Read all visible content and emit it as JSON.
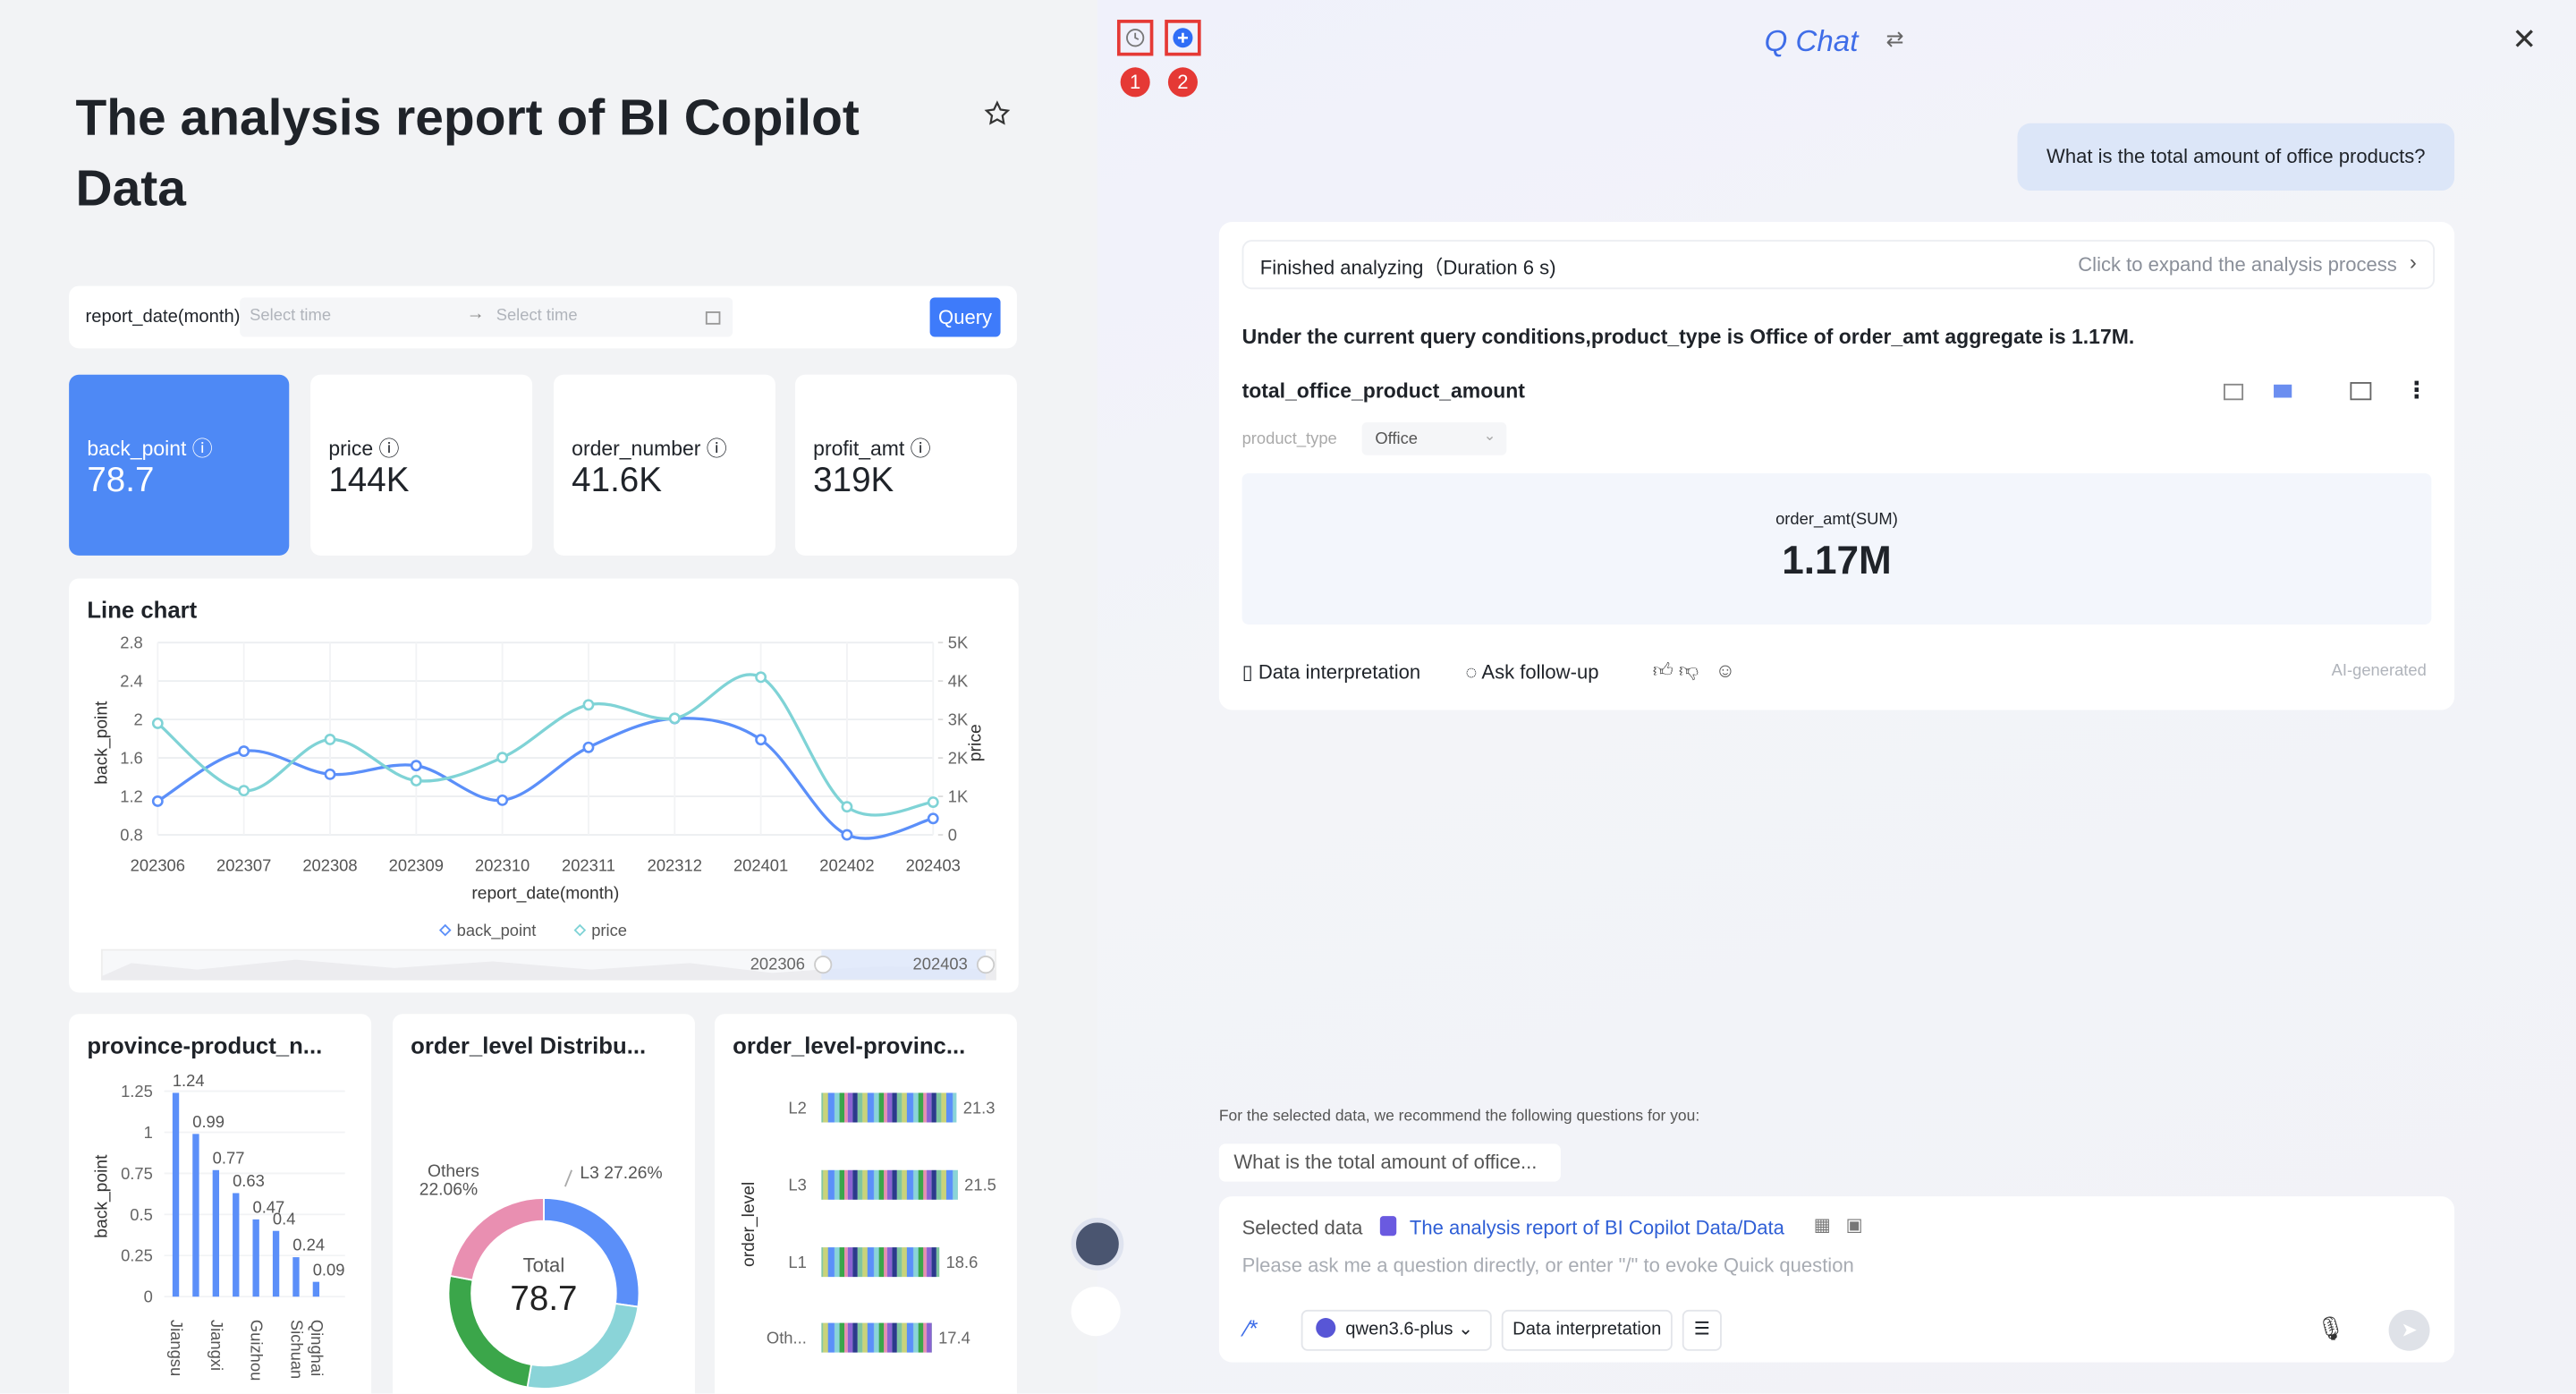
{
  "report": {
    "title": "The analysis report of BI Copilot Data",
    "filter": {
      "label": "report_date(month)",
      "start": "Select time",
      "end": "Select time",
      "button": "Query"
    },
    "kpis": [
      {
        "name": "back_point",
        "value": "78.7"
      },
      {
        "name": "price",
        "value": "144K"
      },
      {
        "name": "order_number",
        "value": "41.6K"
      },
      {
        "name": "profit_amt",
        "value": "319K"
      }
    ],
    "line_chart": {
      "type": "line",
      "title": "Line chart",
      "x_label": "report_date(month)",
      "y_label": "back_point",
      "y2_label": "price",
      "categories": [
        "202306",
        "202307",
        "202308",
        "202309",
        "202310",
        "202311",
        "202312",
        "202401",
        "202402",
        "202403"
      ],
      "series": [
        {
          "name": "back_point",
          "color": "#5b8ff9",
          "values": [
            1.15,
            1.67,
            1.43,
            1.52,
            1.16,
            1.71,
            2.01,
            1.79,
            0.8,
            0.97
          ]
        },
        {
          "name": "price",
          "color": "#7fd3d6",
          "axis": "y2",
          "values": [
            2900,
            1150,
            2480,
            1410,
            2010,
            3380,
            3030,
            4100,
            730,
            850
          ]
        }
      ],
      "ylim": [
        0.8,
        2.8
      ],
      "yticks": [
        0.8,
        1.2,
        1.6,
        2,
        2.4,
        2.8
      ],
      "y2lim": [
        0,
        5000
      ],
      "y2ticks": [
        0,
        {
          "value": 1000,
          "label": "1K"
        },
        {
          "value": 2000,
          "label": "2K"
        },
        {
          "value": 3000,
          "label": "3K"
        },
        {
          "value": 4000,
          "label": "4K"
        },
        {
          "value": 5000,
          "label": "5K"
        }
      ],
      "grid": true
    },
    "bar_chart": {
      "type": "bar",
      "title": "province-product_n...",
      "y_label": "back_point",
      "categories": [
        "Jiangsu",
        null,
        "Jiangxi",
        null,
        "Guizhou",
        null,
        "Sichuan",
        "Qinghai"
      ],
      "values": [
        1.24,
        0.99,
        0.77,
        0.63,
        0.47,
        0.4,
        0.24,
        0.09
      ],
      "color": "#5b8ff9",
      "ylim": [
        0,
        1.3
      ],
      "yticks": [
        0,
        0.25,
        0.5,
        0.75,
        1,
        1.25
      ]
    },
    "donut": {
      "type": "pie",
      "title": "order_level Distribu...",
      "center_label": "Total",
      "center_value": 78.7,
      "categories": [
        "L3",
        null,
        null,
        "Others"
      ],
      "values": [
        27.26,
        25.5,
        25.18,
        22.06
      ],
      "value_labels": [
        "27.26%",
        null,
        null,
        "22.06%"
      ],
      "colors": [
        "#5b8ff9",
        "#8ad4d8",
        "#3ba64a",
        "#e98fb1"
      ]
    },
    "stacked": {
      "type": "bar",
      "title": "order_level-provinc...",
      "y_label": "order_level",
      "categories": [
        "L2",
        "L3",
        "L1",
        "Oth..."
      ],
      "values": [
        21.3,
        21.5,
        18.6,
        17.4
      ],
      "xlim": [
        0,
        21.5
      ]
    }
  },
  "chat": {
    "title": "Q Chat",
    "badges": [
      "1",
      "2"
    ],
    "question": "What is the total amount of office products?",
    "status": "Finished analyzing（Duration 6 s)",
    "expand": "Click to expand the analysis process",
    "answer": "Under the current query conditions,product_type is Office of order_amt aggregate is 1.17M.",
    "card_title": "total_office_product_amount",
    "filter_name": "product_type",
    "filter_value": "Office",
    "metric_name": "order_amt(SUM)",
    "metric_value": "1.17M",
    "actions": [
      "Data interpretation",
      "Ask follow-up"
    ],
    "ai_note": "AI-generated",
    "recommend_intro": "For the selected data, we recommend the following questions for you:",
    "recommend": [
      "What is the total amount of office..."
    ],
    "selected_label": "Selected data",
    "selected_value": "The analysis report of BI Copilot Data/Data",
    "placeholder": "Please ask me a question directly, or enter \"/\" to evoke Quick question",
    "model": "qwen3.6-plus",
    "mode": "Data interpretation"
  }
}
